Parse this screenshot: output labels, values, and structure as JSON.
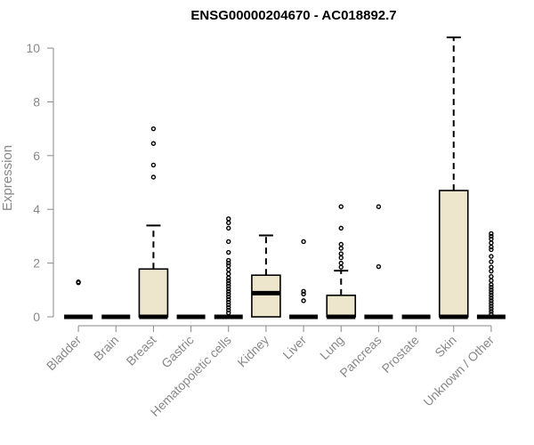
{
  "chart_data": {
    "type": "boxplot",
    "title": "ENSG00000204670 - AC018892.7",
    "ylabel": "Expression",
    "xlabel": "",
    "ylim": [
      0,
      10.4
    ],
    "yticks": [
      0,
      2,
      4,
      6,
      8,
      10
    ],
    "box_color": "#ede6cc",
    "categories": [
      "Bladder",
      "Brain",
      "Breast",
      "Gastric",
      "Hematopoietic cells",
      "Kidney",
      "Liver",
      "Lung",
      "Pancreas",
      "Prostate",
      "Skin",
      "Unknown / Other"
    ],
    "boxes": [
      {
        "q1": 0,
        "median": 0,
        "q3": 0,
        "whisker_low": 0,
        "whisker_high": 0,
        "outliers": [
          1.27,
          1.3
        ]
      },
      {
        "q1": 0,
        "median": 0,
        "q3": 0,
        "whisker_low": 0,
        "whisker_high": 0,
        "outliers": []
      },
      {
        "q1": 0,
        "median": 0,
        "q3": 1.78,
        "whisker_low": 0,
        "whisker_high": 3.4,
        "outliers": [
          5.2,
          5.65,
          6.45,
          7.0
        ]
      },
      {
        "q1": 0,
        "median": 0,
        "q3": 0,
        "whisker_low": 0,
        "whisker_high": 0,
        "outliers": []
      },
      {
        "q1": 0,
        "median": 0,
        "q3": 0,
        "whisker_low": 0,
        "whisker_high": 0,
        "outliers": [
          0.15,
          0.25,
          0.35,
          0.45,
          0.55,
          0.65,
          0.75,
          0.85,
          0.95,
          1.05,
          1.15,
          1.25,
          1.35,
          1.45,
          1.6,
          1.75,
          1.9,
          2.0,
          2.1,
          2.4,
          2.8,
          3.3,
          3.5,
          3.65
        ]
      },
      {
        "q1": 0,
        "median": 0.88,
        "q3": 1.55,
        "whisker_low": 0,
        "whisker_high": 3.03,
        "outliers": []
      },
      {
        "q1": 0,
        "median": 0,
        "q3": 0,
        "whisker_low": 0,
        "whisker_high": 0,
        "outliers": [
          0.6,
          0.85,
          0.95,
          2.8
        ]
      },
      {
        "q1": 0,
        "median": 0,
        "q3": 0.8,
        "whisker_low": 0,
        "whisker_high": 1.72,
        "outliers": [
          1.85,
          2.0,
          2.2,
          2.35,
          2.55,
          2.7,
          3.3,
          4.1
        ]
      },
      {
        "q1": 0,
        "median": 0,
        "q3": 0,
        "whisker_low": 0,
        "whisker_high": 0,
        "outliers": [
          1.87,
          4.1
        ]
      },
      {
        "q1": 0,
        "median": 0,
        "q3": 0,
        "whisker_low": 0,
        "whisker_high": 0,
        "outliers": []
      },
      {
        "q1": 0,
        "median": 0,
        "q3": 4.7,
        "whisker_low": 0,
        "whisker_high": 10.4,
        "outliers": []
      },
      {
        "q1": 0,
        "median": 0,
        "q3": 0,
        "whisker_low": 0,
        "whisker_high": 0,
        "outliers": [
          0.1,
          0.2,
          0.3,
          0.4,
          0.5,
          0.6,
          0.7,
          0.8,
          0.9,
          1.0,
          1.1,
          1.2,
          1.35,
          1.5,
          1.7,
          1.85,
          2.05,
          2.25,
          2.5,
          2.6,
          2.75,
          2.9,
          3.0,
          3.1
        ]
      }
    ]
  }
}
